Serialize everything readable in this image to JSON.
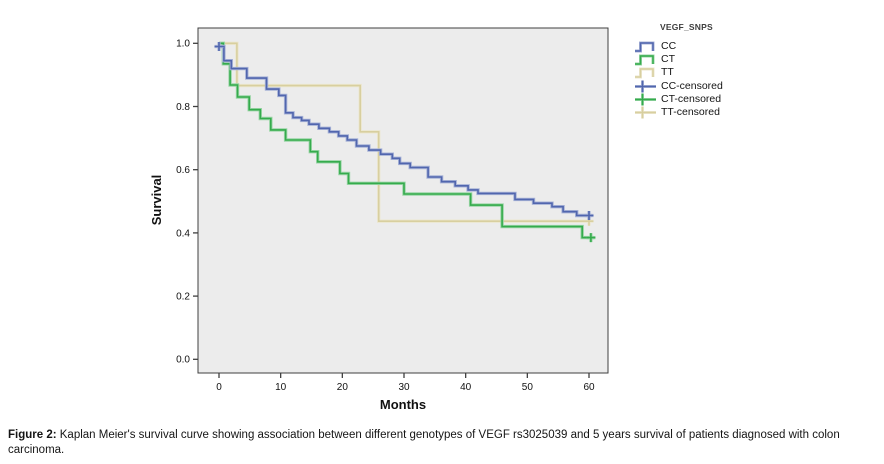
{
  "chart_data": {
    "type": "line",
    "variant": "kaplan-meier-step-survival",
    "title": "",
    "xlabel": "Months",
    "ylabel": "Survival",
    "xlim": [
      0,
      60
    ],
    "ylim": [
      0.0,
      1.0
    ],
    "xticks": [
      0,
      10,
      20,
      30,
      40,
      50,
      60
    ],
    "yticks": [
      "0.0",
      "0.2",
      "0.4",
      "0.6",
      "0.8",
      "1.0"
    ],
    "grid": false,
    "plot_background": "#ececec",
    "frame_color": "#3f3f3f",
    "legend": {
      "title": "VEGF_SNPS",
      "position": "outside-top-right",
      "entries": [
        {
          "label": "CC",
          "marker": "step-line",
          "color": "#5166ae"
        },
        {
          "label": "CT",
          "marker": "step-line",
          "color": "#35ab4c"
        },
        {
          "label": "TT",
          "marker": "step-line",
          "color": "#d8cf9f"
        },
        {
          "label": "CC-censored",
          "marker": "plus",
          "color": "#5166ae"
        },
        {
          "label": "CT-censored",
          "marker": "plus",
          "color": "#35ab4c"
        },
        {
          "label": "TT-censored",
          "marker": "plus",
          "color": "#d8cf9f"
        }
      ]
    },
    "series": [
      {
        "name": "CC",
        "color": "#5166ae",
        "steps": [
          [
            0,
            0.99
          ],
          [
            0.8,
            0.945
          ],
          [
            2,
            0.92
          ],
          [
            4.5,
            0.89
          ],
          [
            7.7,
            0.855
          ],
          [
            9.7,
            0.835
          ],
          [
            10.8,
            0.78
          ],
          [
            12,
            0.765
          ],
          [
            13.4,
            0.756
          ],
          [
            14.6,
            0.744
          ],
          [
            16.2,
            0.731
          ],
          [
            17.9,
            0.72
          ],
          [
            19.4,
            0.707
          ],
          [
            20.8,
            0.694
          ],
          [
            22.3,
            0.675
          ],
          [
            24.3,
            0.662
          ],
          [
            26.2,
            0.649
          ],
          [
            28.1,
            0.636
          ],
          [
            29.3,
            0.62
          ],
          [
            31,
            0.607
          ],
          [
            33.9,
            0.577
          ],
          [
            36.1,
            0.562
          ],
          [
            38.3,
            0.549
          ],
          [
            40.4,
            0.536
          ],
          [
            42,
            0.525
          ],
          [
            48,
            0.506
          ],
          [
            51,
            0.494
          ],
          [
            54,
            0.483
          ],
          [
            55.8,
            0.467
          ],
          [
            58,
            0.455
          ]
        ],
        "end_month": 60.4,
        "censored": [
          [
            0,
            0.99
          ],
          [
            60,
            0.455
          ]
        ]
      },
      {
        "name": "CT",
        "color": "#35ab4c",
        "steps": [
          [
            0,
            1.0
          ],
          [
            0.7,
            0.935
          ],
          [
            1.8,
            0.868
          ],
          [
            3,
            0.83
          ],
          [
            4.9,
            0.79
          ],
          [
            6.7,
            0.762
          ],
          [
            8.4,
            0.726
          ],
          [
            10.8,
            0.694
          ],
          [
            14.8,
            0.657
          ],
          [
            16,
            0.625
          ],
          [
            19.6,
            0.588
          ],
          [
            21,
            0.557
          ],
          [
            30,
            0.523
          ],
          [
            40.8,
            0.488
          ],
          [
            45.9,
            0.42
          ],
          [
            58.9,
            0.385
          ]
        ],
        "end_month": 60.8,
        "censored": [
          [
            60.3,
            0.385
          ]
        ]
      },
      {
        "name": "TT",
        "color": "#d8cf9f",
        "steps": [
          [
            0,
            1.0
          ],
          [
            2.9,
            0.866
          ],
          [
            22.9,
            0.72
          ],
          [
            25.9,
            0.437
          ]
        ],
        "end_month": 60.3,
        "censored": [
          [
            60,
            0.437
          ]
        ]
      }
    ]
  },
  "caption": {
    "prefix": "Figure 2:",
    "text": " Kaplan Meier's survival curve showing association between different genotypes of VEGF rs3025039 and 5 years survival of patients diagnosed with colon carcinoma."
  }
}
